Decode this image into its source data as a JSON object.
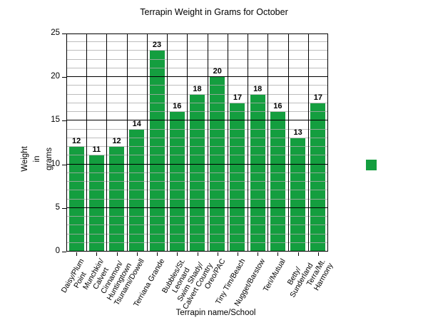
{
  "chart_data": {
    "type": "bar",
    "title": "Terrapin Weight in Grams for October",
    "xlabel": "Terrapin name/School",
    "ylabel": "Weight in grams",
    "ylabel_lines": [
      "Weight",
      "in",
      "grams"
    ],
    "categories": [
      "Daisy/Plum Point",
      "Munchkin/Calvert",
      "Cinnamon/Huntingtown",
      "Tsunami/Dowell",
      "Terriana Grande",
      "Bubbles/St. Leonard",
      "Swim Shady/Calvert Country",
      "Oreo/PAC",
      "Tiny Tim/Beach",
      "Nugget/Barstow",
      "Teri/Mutual",
      "Betty/Sunderland",
      "Terra/Mt. Harmony"
    ],
    "category_label_lines": [
      [
        "Daisy/Plum",
        "Point"
      ],
      [
        "Munchkin/",
        "Calvert"
      ],
      [
        "Cinnamon/",
        "Huntingtown"
      ],
      [
        "Tsunami/Dowell"
      ],
      [
        "Terriana Grande"
      ],
      [
        "Bubbles/St.",
        "Leonard"
      ],
      [
        "Swim Shady/",
        "Calvert Country"
      ],
      [
        "Oreo/PAC"
      ],
      [
        "Tiny Tim/Beach"
      ],
      [
        "Nugget/Barstow"
      ],
      [
        "Teri/Mutual"
      ],
      [
        "Betty/",
        "Sunderland"
      ],
      [
        "Terra/Mt.",
        "Harmony"
      ]
    ],
    "values": [
      12,
      11,
      12,
      14,
      23,
      16,
      18,
      20,
      17,
      18,
      16,
      13,
      17
    ],
    "ylim": [
      0,
      25
    ],
    "yticks": [
      0,
      5,
      10,
      15,
      20,
      25
    ],
    "ytick_step": 5,
    "yminor_step": 1,
    "grid": {
      "major_color": "#000000",
      "minor_color": "#ADADAD",
      "vertical_dividers": true
    },
    "bar_color": "#149E3F",
    "legend": {
      "position": "right",
      "swatch_color": "#149E3F",
      "label": ""
    }
  }
}
